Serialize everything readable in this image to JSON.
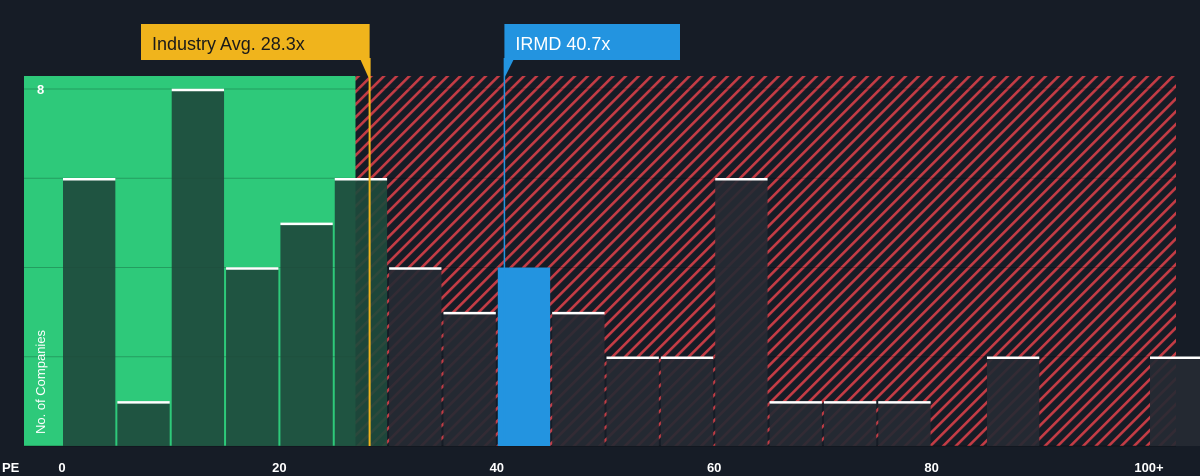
{
  "chart_data": {
    "type": "bar",
    "x_axis_name": "PE",
    "ylabel": "No. of Companies",
    "x_ticks": [
      {
        "value": 0,
        "label": "0"
      },
      {
        "value": 20,
        "label": "20"
      },
      {
        "value": 40,
        "label": "40"
      },
      {
        "value": 60,
        "label": "60"
      },
      {
        "value": 80,
        "label": "80"
      },
      {
        "value": 100,
        "label": "100+"
      }
    ],
    "y_ticks": [
      {
        "value": 8,
        "label": "8"
      }
    ],
    "xlim": [
      0,
      102.5
    ],
    "ylim": [
      0,
      8.3
    ],
    "bin_width": 5,
    "bins": [
      {
        "start": 0,
        "count": 6
      },
      {
        "start": 5,
        "count": 1
      },
      {
        "start": 10,
        "count": 8
      },
      {
        "start": 15,
        "count": 4
      },
      {
        "start": 20,
        "count": 5
      },
      {
        "start": 25,
        "count": 6
      },
      {
        "start": 30,
        "count": 4
      },
      {
        "start": 35,
        "count": 3
      },
      {
        "start": 40,
        "count": 4,
        "highlight": true
      },
      {
        "start": 45,
        "count": 3
      },
      {
        "start": 50,
        "count": 2
      },
      {
        "start": 55,
        "count": 2
      },
      {
        "start": 60,
        "count": 6
      },
      {
        "start": 65,
        "count": 1
      },
      {
        "start": 70,
        "count": 1
      },
      {
        "start": 75,
        "count": 1
      },
      {
        "start": 80,
        "count": 0
      },
      {
        "start": 85,
        "count": 2
      },
      {
        "start": 90,
        "count": 0
      },
      {
        "start": 95,
        "count": 0
      },
      {
        "start": 100,
        "count": 2
      }
    ],
    "fair_zone_end": 27,
    "industry_avg": {
      "value": 28.3,
      "label": "Industry Avg. 28.3x"
    },
    "company": {
      "value": 40.7,
      "label": "IRMD 40.7x"
    },
    "grid": true
  },
  "colors": {
    "background": "#161c26",
    "fair_zone": "#2ec97a",
    "fair_bar": "#1e4a3c",
    "expensive_stripe": "#c43c45",
    "expensive_bar": "#262a33",
    "highlight_bar": "#2394e0",
    "industry_callout": "#f0b41c",
    "company_callout": "#2394e0",
    "bar_top": "#ffffff"
  }
}
